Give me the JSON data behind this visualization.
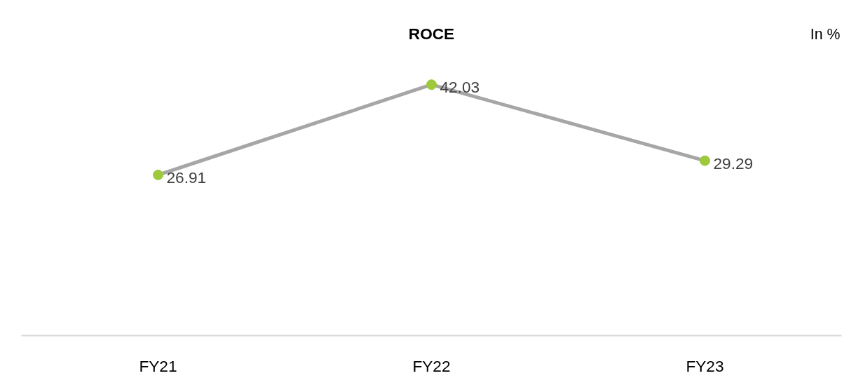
{
  "chart_data": {
    "type": "line",
    "title": "ROCE",
    "annotations": [
      "In %"
    ],
    "categories": [
      "FY21",
      "FY22",
      "FY23"
    ],
    "series": [
      {
        "color": "#a6a6a6",
        "colors": [
          "#9dc93b",
          "#9dc93b",
          "#9dc93b"
        ],
        "values": [
          26.91,
          42.03,
          29.29
        ]
      }
    ],
    "data_labels": true,
    "marker": "circle",
    "line_style": "solid",
    "grid": false
  }
}
